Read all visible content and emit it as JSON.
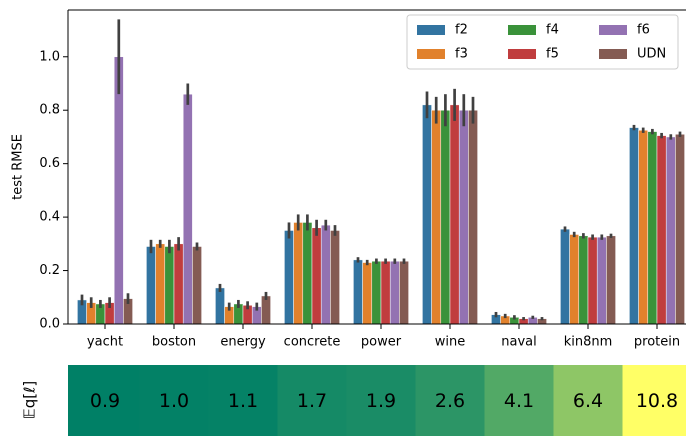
{
  "chart_data": [
    {
      "type": "bar",
      "ylabel": "test RMSE",
      "categories": [
        "yacht",
        "boston",
        "energy",
        "concrete",
        "power",
        "wine",
        "naval",
        "kin8nm",
        "protein"
      ],
      "series": [
        {
          "name": "f2",
          "color": "#3274a1",
          "values": [
            0.09,
            0.29,
            0.135,
            0.35,
            0.24,
            0.82,
            0.035,
            0.355,
            0.735
          ],
          "errors": [
            0.02,
            0.025,
            0.015,
            0.03,
            0.01,
            0.05,
            0.01,
            0.01,
            0.01
          ]
        },
        {
          "name": "f3",
          "color": "#e1812c",
          "values": [
            0.08,
            0.3,
            0.065,
            0.38,
            0.23,
            0.8,
            0.03,
            0.335,
            0.725
          ],
          "errors": [
            0.02,
            0.015,
            0.015,
            0.03,
            0.01,
            0.05,
            0.008,
            0.01,
            0.01
          ]
        },
        {
          "name": "f4",
          "color": "#3a923a",
          "values": [
            0.075,
            0.29,
            0.075,
            0.38,
            0.235,
            0.8,
            0.025,
            0.33,
            0.72
          ],
          "errors": [
            0.015,
            0.025,
            0.015,
            0.03,
            0.01,
            0.06,
            0.008,
            0.01,
            0.01
          ]
        },
        {
          "name": "f5",
          "color": "#c03d3e",
          "values": [
            0.08,
            0.3,
            0.07,
            0.36,
            0.235,
            0.82,
            0.02,
            0.325,
            0.705
          ],
          "errors": [
            0.02,
            0.025,
            0.015,
            0.03,
            0.01,
            0.06,
            0.006,
            0.01,
            0.01
          ]
        },
        {
          "name": "f6",
          "color": "#9372b2",
          "values": [
            1.0,
            0.86,
            0.065,
            0.37,
            0.235,
            0.8,
            0.025,
            0.325,
            0.7
          ],
          "errors": [
            0.14,
            0.04,
            0.015,
            0.02,
            0.01,
            0.06,
            0.006,
            0.01,
            0.01
          ]
        },
        {
          "name": "UDN",
          "color": "#845b53",
          "values": [
            0.095,
            0.29,
            0.105,
            0.35,
            0.235,
            0.8,
            0.02,
            0.33,
            0.71
          ],
          "errors": [
            0.02,
            0.015,
            0.015,
            0.02,
            0.01,
            0.05,
            0.006,
            0.008,
            0.01
          ]
        }
      ],
      "ylim": [
        0,
        1.175
      ],
      "yticks": [
        {
          "value": 0,
          "label": "0.0"
        },
        0.2,
        0.4,
        0.6,
        0.8,
        {
          "value": 1,
          "label": "1.0"
        }
      ],
      "legend": "upper right",
      "legend_columns": 3,
      "error_color": "#404040"
    },
    {
      "type": "heatmap",
      "ylabel": "𝔼q[ℓ]",
      "colormap": "summer",
      "values": [
        0.9,
        1.0,
        1.1,
        1.7,
        1.9,
        2.6,
        4.1,
        6.4,
        10.8
      ],
      "value_labels": [
        "0.9",
        "1.0",
        "1.1",
        "1.7",
        "1.9",
        "2.6",
        "4.1",
        "6.4",
        "10.8"
      ]
    }
  ]
}
